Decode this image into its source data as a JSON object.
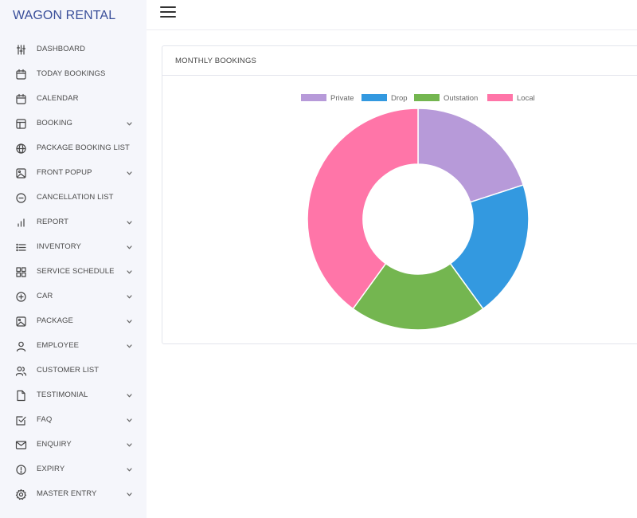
{
  "app": {
    "brand": "WAGON RENTAL"
  },
  "sidebar": {
    "items": [
      {
        "label": "DASHBOARD",
        "icon": "sliders-icon",
        "has_submenu": false
      },
      {
        "label": "TODAY BOOKINGS",
        "icon": "calendar-icon",
        "has_submenu": false
      },
      {
        "label": "CALENDAR",
        "icon": "calendar-icon",
        "has_submenu": false
      },
      {
        "label": "BOOKING",
        "icon": "layout-icon",
        "has_submenu": true
      },
      {
        "label": "PACKAGE BOOKING LIST",
        "icon": "globe-icon",
        "has_submenu": false
      },
      {
        "label": "FRONT POPUP",
        "icon": "image-icon",
        "has_submenu": true
      },
      {
        "label": "CANCELLATION LIST",
        "icon": "minus-circle-icon",
        "has_submenu": false
      },
      {
        "label": "REPORT",
        "icon": "bar-chart-icon",
        "has_submenu": true
      },
      {
        "label": "INVENTORY",
        "icon": "list-icon",
        "has_submenu": true
      },
      {
        "label": "SERVICE SCHEDULE",
        "icon": "grid-icon",
        "has_submenu": true
      },
      {
        "label": "CAR",
        "icon": "plus-circle-icon",
        "has_submenu": true
      },
      {
        "label": "PACKAGE",
        "icon": "image-icon",
        "has_submenu": true
      },
      {
        "label": "EMPLOYEE",
        "icon": "user-icon",
        "has_submenu": true
      },
      {
        "label": "CUSTOMER LIST",
        "icon": "users-icon",
        "has_submenu": false
      },
      {
        "label": "TESTIMONIAL",
        "icon": "file-icon",
        "has_submenu": true
      },
      {
        "label": "FAQ",
        "icon": "check-square-icon",
        "has_submenu": true
      },
      {
        "label": "ENQUIRY",
        "icon": "mail-icon",
        "has_submenu": true
      },
      {
        "label": "EXPIRY",
        "icon": "alert-circle-icon",
        "has_submenu": true
      },
      {
        "label": "MASTER ENTRY",
        "icon": "settings-icon",
        "has_submenu": true
      }
    ]
  },
  "card": {
    "title": "MONTHLY BOOKINGS"
  },
  "colors": {
    "brand": "#3a4f9a",
    "private": "#b79ad9",
    "drop": "#3399e0",
    "outstation": "#74b650",
    "local": "#ff75a8"
  },
  "chart_data": {
    "type": "pie",
    "variant": "doughnut",
    "title": "",
    "legend_position": "top",
    "categories": [
      "Private",
      "Drop",
      "Outstation",
      "Local"
    ],
    "values": [
      2,
      2,
      2,
      4
    ],
    "colors": [
      "#b79ad9",
      "#3399e0",
      "#74b650",
      "#ff75a8"
    ]
  }
}
